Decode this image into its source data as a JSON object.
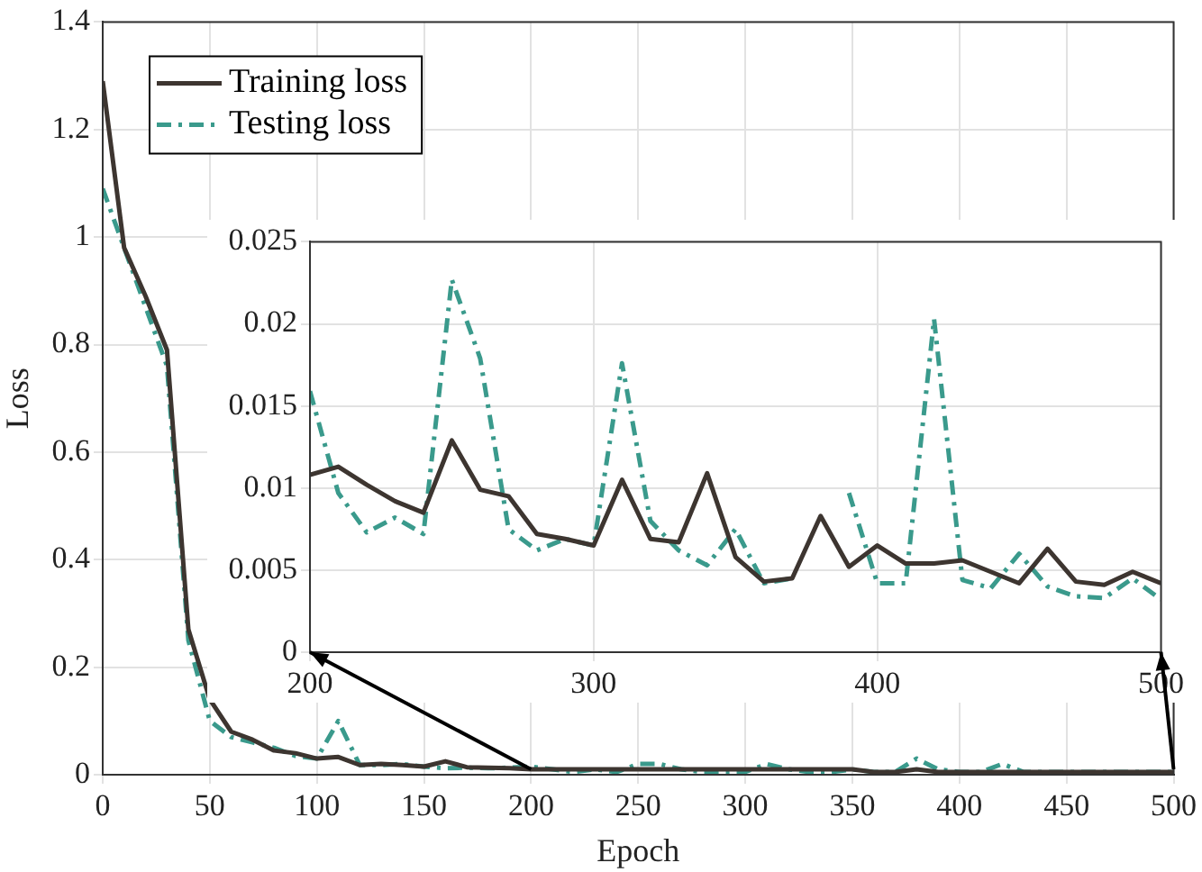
{
  "chart_data": [
    {
      "type": "line",
      "xlabel": "Epoch",
      "ylabel": "Loss",
      "x": [
        0,
        10,
        20,
        30,
        40,
        50,
        60,
        70,
        80,
        90,
        100,
        110,
        120,
        130,
        140,
        150,
        160,
        170,
        180,
        190,
        200,
        210,
        220,
        230,
        240,
        250,
        260,
        270,
        280,
        290,
        300,
        310,
        320,
        330,
        340,
        350,
        360,
        370,
        380,
        390,
        400,
        410,
        420,
        430,
        440,
        450,
        460,
        470,
        480,
        490,
        500
      ],
      "series": [
        {
          "name": "Training loss",
          "color": "#3d3530",
          "line_style": "solid",
          "values": [
            1.29,
            0.98,
            0.89,
            0.79,
            0.27,
            0.14,
            0.08,
            0.065,
            0.045,
            0.04,
            0.03,
            0.033,
            0.018,
            0.02,
            0.018,
            0.015,
            0.025,
            0.014,
            0.013,
            0.012,
            0.01,
            0.01,
            0.01,
            0.01,
            0.01,
            0.01,
            0.01,
            0.01,
            0.01,
            0.01,
            0.01,
            0.01,
            0.01,
            0.01,
            0.01,
            0.01,
            0.005,
            0.005,
            0.01,
            0.005,
            0.005,
            0.005,
            0.005,
            0.005,
            0.005,
            0.005,
            0.005,
            0.005,
            0.005,
            0.005,
            0.005
          ]
        },
        {
          "name": "Testing loss",
          "color": "#3a9a8c",
          "line_style": "dashed",
          "values": [
            1.09,
            0.98,
            0.87,
            0.76,
            0.25,
            0.1,
            0.07,
            0.06,
            0.05,
            0.035,
            0.03,
            0.1,
            0.018,
            0.018,
            0.02,
            0.015,
            0.012,
            0.013,
            0.012,
            0.013,
            0.015,
            0.01,
            0.005,
            0.01,
            0.005,
            0.02,
            0.02,
            0.01,
            0.005,
            0.005,
            0.005,
            0.02,
            0.01,
            0.005,
            0.005,
            0.01,
            0.005,
            0.005,
            0.03,
            0.01,
            0.005,
            0.005,
            0.02,
            0.005,
            0.005,
            0.005,
            0.005,
            0.005,
            0.005,
            0.005,
            0.005
          ]
        }
      ],
      "xlim": [
        0,
        500
      ],
      "xticks": [
        0,
        50,
        100,
        150,
        200,
        250,
        300,
        350,
        400,
        450,
        500
      ],
      "ylim": [
        0,
        1.4
      ],
      "yticks": [
        0,
        0.2,
        0.4,
        0.6,
        0.8,
        1,
        1.2,
        1.4
      ],
      "grid": true,
      "legend": "top left"
    },
    {
      "type": "line",
      "x": [
        200,
        210,
        220,
        230,
        240,
        250,
        260,
        270,
        280,
        290,
        300,
        310,
        320,
        330,
        340,
        350,
        360,
        370,
        380,
        390,
        400,
        410,
        420,
        430,
        440,
        450,
        460,
        470,
        480,
        490,
        500
      ],
      "series": [
        {
          "color": "#3d3530",
          "line_style": "solid",
          "values": [
            0.0108,
            0.0113,
            0.0102,
            0.0092,
            0.0085,
            0.0129,
            0.0099,
            0.0095,
            0.0072,
            0.0069,
            0.0065,
            0.0105,
            0.0069,
            0.0067,
            0.0109,
            0.0058,
            0.0043,
            0.0045,
            0.0083,
            0.0052,
            0.0065,
            0.0054,
            0.0054,
            0.0056,
            0.0049,
            0.0042,
            0.0063,
            0.0043,
            0.0041,
            0.0049,
            0.0042
          ]
        },
        {
          "color": "#3a9a8c",
          "line_style": "dashed",
          "values": [
            0.0159,
            0.0097,
            0.0073,
            0.0082,
            0.0072,
            0.0227,
            0.0179,
            0.0075,
            0.0062,
            0.0069,
            0.0065,
            0.0176,
            0.008,
            0.0062,
            0.0053,
            0.0075,
            0.0042,
            0.0045,
            null,
            0.0097,
            0.0042,
            0.0042,
            0.0203,
            0.0044,
            0.0039,
            0.006,
            0.004,
            0.0034,
            0.0033,
            0.0045,
            0.0032
          ]
        }
      ],
      "xlim": [
        200,
        500
      ],
      "xticks": [
        200,
        300,
        400,
        500
      ],
      "ylim": [
        0,
        0.025
      ],
      "yticks": [
        0,
        0.005,
        0.01,
        0.015,
        0.02,
        0.025
      ],
      "grid": true
    }
  ]
}
